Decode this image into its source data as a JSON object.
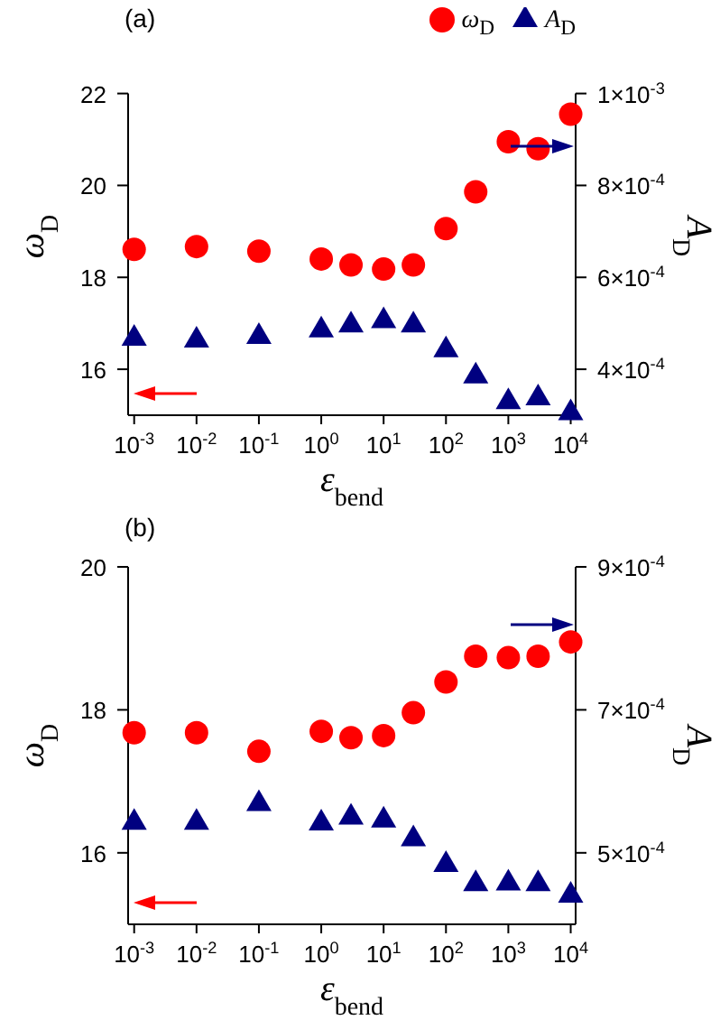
{
  "chart_data": [
    {
      "type": "scatter",
      "title": "(a)",
      "xlabel": "ε$_{bend}$",
      "ylabel": "ω$_{D}$",
      "y2label": "A$_{D}$",
      "log": "x",
      "legend": "top right",
      "xlim": [
        0.0008,
        12000
      ],
      "xticks": [
        {
          "value": 0.001,
          "label": "10$^{-3}$"
        },
        {
          "value": 0.01,
          "label": "10$^{-2}$"
        },
        {
          "value": 0.1,
          "label": "10$^{-1}$"
        },
        {
          "value": 1,
          "label": "10$^{0}$"
        },
        {
          "value": 10,
          "label": "10$^{1}$"
        },
        {
          "value": 100,
          "label": "10$^{2}$"
        },
        {
          "value": 1000,
          "label": "10$^{3}$"
        },
        {
          "value": 10000,
          "label": "10$^{4}$"
        }
      ],
      "ylim": [
        15,
        22
      ],
      "yticks": [
        16,
        18,
        20,
        22
      ],
      "y2lim": [
        0.0003,
        0.001
      ],
      "y2ticks": [
        {
          "value": 0.0004,
          "label": "4×10$^{-4}$"
        },
        {
          "value": 0.0006,
          "label": "6×10$^{-4}$"
        },
        {
          "value": 0.0008,
          "label": "8×10$^{-4}$"
        },
        {
          "value": 0.001,
          "label": "1×10$^{-3}$"
        }
      ],
      "x": [
        0.001,
        0.01,
        0.1,
        1,
        3,
        10,
        30,
        100,
        300,
        1000,
        3000,
        10000
      ],
      "series": [
        {
          "name": "ω$_{D}$",
          "color": "#ff0000",
          "marker": "circle",
          "values": [
            18.61,
            18.67,
            18.57,
            18.4,
            18.27,
            18.18,
            18.27,
            19.06,
            19.86,
            20.95,
            20.8,
            21.55
          ]
        },
        {
          "name": "A$_{D}$",
          "color": "#000080",
          "marker": "triangle",
          "axis": "y2",
          "values": [
            0.000471,
            0.000467,
            0.000475,
            0.000489,
            0.0005,
            0.000509,
            0.0005,
            0.000446,
            0.000389,
            0.000333,
            0.000341,
            0.000309
          ]
        }
      ]
    },
    {
      "type": "scatter",
      "title": "(b)",
      "xlabel": "ε$_{bend}$",
      "ylabel": "ω$_{D}$",
      "y2label": "A$_{D}$",
      "log": "x",
      "xlim": [
        0.0008,
        12000
      ],
      "xticks": [
        {
          "value": 0.001,
          "label": "10$^{-3}$"
        },
        {
          "value": 0.01,
          "label": "10$^{-2}$"
        },
        {
          "value": 0.1,
          "label": "10$^{-1}$"
        },
        {
          "value": 1,
          "label": "10$^{0}$"
        },
        {
          "value": 10,
          "label": "10$^{1}$"
        },
        {
          "value": 100,
          "label": "10$^{2}$"
        },
        {
          "value": 1000,
          "label": "10$^{3}$"
        },
        {
          "value": 10000,
          "label": "10$^{4}$"
        }
      ],
      "ylim": [
        15,
        20
      ],
      "yticks": [
        16,
        18,
        20
      ],
      "y2lim": [
        0.0004,
        0.0009
      ],
      "y2ticks": [
        {
          "value": 0.0005,
          "label": "5×10$^{-4}$"
        },
        {
          "value": 0.0007,
          "label": "7×10$^{-4}$"
        },
        {
          "value": 0.0009,
          "label": "9×10$^{-4}$"
        }
      ],
      "x": [
        0.001,
        0.01,
        0.1,
        1,
        3,
        10,
        30,
        100,
        300,
        1000,
        3000,
        10000
      ],
      "series": [
        {
          "color": "#ff0000",
          "marker": "circle",
          "values": [
            17.68,
            17.68,
            17.42,
            17.7,
            17.61,
            17.64,
            17.96,
            18.39,
            18.75,
            18.73,
            18.75,
            18.95
          ]
        },
        {
          "color": "#000080",
          "marker": "triangle",
          "axis": "y2",
          "values": [
            0.000545,
            0.000545,
            0.000571,
            0.000544,
            0.000552,
            0.000548,
            0.000522,
            0.000486,
            0.000459,
            0.00046,
            0.000459,
            0.000443
          ]
        }
      ]
    }
  ]
}
